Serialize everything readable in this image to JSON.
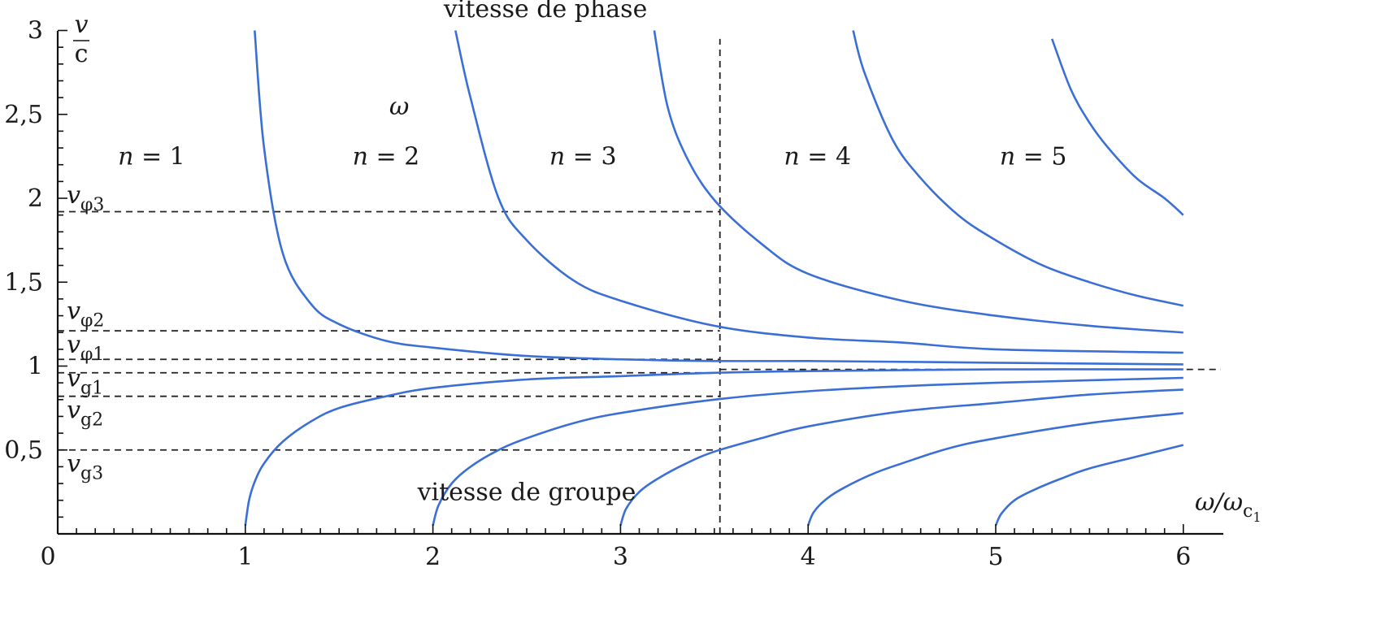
{
  "chart_data": {
    "type": "line",
    "title": "",
    "xlabel": {
      "main": "ω/ω",
      "sub": "c",
      "subsub": "1"
    },
    "ylabel": {
      "num": "v",
      "den": "c"
    },
    "xlim": [
      0,
      6
    ],
    "ylim": [
      0,
      3
    ],
    "x_ticks": [
      {
        "value": 0,
        "label": "0"
      },
      {
        "value": 1,
        "label": "1"
      },
      {
        "value": 2,
        "label": "2"
      },
      {
        "value": 3,
        "label": "3"
      },
      {
        "value": 4,
        "label": "4"
      },
      {
        "value": 5,
        "label": "5"
      },
      {
        "value": 6,
        "label": "6"
      }
    ],
    "y_ticks": [
      {
        "value": 0.5,
        "label": "0,5"
      },
      {
        "value": 1,
        "label": "1"
      },
      {
        "value": 1.5,
        "label": "1,5"
      },
      {
        "value": 2,
        "label": "2"
      },
      {
        "value": 2.5,
        "label": "2,5"
      },
      {
        "value": 3,
        "label": "3"
      }
    ],
    "line_color": "#3b6fd6",
    "grid": false,
    "series": [
      {
        "kind": "phase",
        "mode": 1,
        "x": [
          1.05,
          1.1,
          1.2,
          1.35,
          1.5,
          1.75,
          2,
          2.5,
          3,
          3.5,
          4,
          5,
          6
        ],
        "y": [
          3.0,
          2.3,
          1.67,
          1.37,
          1.25,
          1.15,
          1.11,
          1.06,
          1.04,
          1.03,
          1.03,
          1.02,
          1.01
        ]
      },
      {
        "kind": "phase",
        "mode": 2,
        "x": [
          2.12,
          2.2,
          2.35,
          2.5,
          2.75,
          3,
          3.5,
          4,
          4.5,
          5,
          6
        ],
        "y": [
          3.0,
          2.6,
          2.0,
          1.75,
          1.51,
          1.39,
          1.24,
          1.17,
          1.14,
          1.1,
          1.08
        ]
      },
      {
        "kind": "phase",
        "mode": 3,
        "x": [
          3.18,
          3.25,
          3.35,
          3.5,
          3.75,
          4,
          4.5,
          5,
          5.5,
          6
        ],
        "y": [
          3.0,
          2.55,
          2.25,
          1.99,
          1.73,
          1.55,
          1.39,
          1.3,
          1.24,
          1.2
        ]
      },
      {
        "kind": "phase",
        "mode": 4,
        "x": [
          4.24,
          4.3,
          4.45,
          4.6,
          4.8,
          5,
          5.25,
          5.5,
          5.75,
          6
        ],
        "y": [
          3.0,
          2.75,
          2.35,
          2.12,
          1.9,
          1.75,
          1.6,
          1.5,
          1.42,
          1.36
        ]
      },
      {
        "kind": "phase",
        "mode": 5,
        "x": [
          5.3,
          5.4,
          5.5,
          5.6,
          5.75,
          5.9,
          6
        ],
        "y": [
          2.95,
          2.65,
          2.45,
          2.3,
          2.12,
          2.0,
          1.9
        ]
      },
      {
        "kind": "group",
        "mode": 1,
        "x": [
          1.0,
          1.02,
          1.05,
          1.1,
          1.2,
          1.35,
          1.5,
          1.75,
          2,
          2.5,
          3,
          3.5,
          4,
          5,
          6
        ],
        "y": [
          0.05,
          0.2,
          0.31,
          0.42,
          0.55,
          0.67,
          0.75,
          0.82,
          0.87,
          0.92,
          0.94,
          0.96,
          0.97,
          0.98,
          0.98
        ]
      },
      {
        "kind": "group",
        "mode": 2,
        "x": [
          2.0,
          2.03,
          2.1,
          2.2,
          2.35,
          2.5,
          2.75,
          3,
          3.5,
          4,
          4.5,
          5,
          6
        ],
        "y": [
          0.05,
          0.17,
          0.3,
          0.4,
          0.5,
          0.57,
          0.66,
          0.72,
          0.8,
          0.85,
          0.88,
          0.9,
          0.93
        ]
      },
      {
        "kind": "group",
        "mode": 3,
        "x": [
          3.0,
          3.03,
          3.1,
          3.2,
          3.35,
          3.5,
          3.75,
          4,
          4.5,
          5,
          5.5,
          6
        ],
        "y": [
          0.05,
          0.15,
          0.25,
          0.33,
          0.42,
          0.49,
          0.57,
          0.64,
          0.73,
          0.78,
          0.83,
          0.86
        ]
      },
      {
        "kind": "group",
        "mode": 4,
        "x": [
          4.0,
          4.03,
          4.1,
          4.2,
          4.35,
          4.5,
          4.75,
          5,
          5.5,
          6
        ],
        "y": [
          0.05,
          0.13,
          0.21,
          0.28,
          0.36,
          0.42,
          0.51,
          0.57,
          0.66,
          0.72
        ]
      },
      {
        "kind": "group",
        "mode": 5,
        "x": [
          5.0,
          5.03,
          5.1,
          5.2,
          5.35,
          5.5,
          5.75,
          6
        ],
        "y": [
          0.05,
          0.12,
          0.2,
          0.26,
          0.33,
          0.39,
          0.46,
          0.53
        ]
      }
    ],
    "reference_lines": [
      {
        "orientation": "horizontal",
        "y": 1.92,
        "x_start": 0,
        "x_end": 3.53
      },
      {
        "orientation": "horizontal",
        "y": 1.21,
        "x_start": 0,
        "x_end": 3.53
      },
      {
        "orientation": "horizontal",
        "y": 1.04,
        "x_start": 0,
        "x_end": 3.53
      },
      {
        "orientation": "horizontal",
        "y": 0.96,
        "x_start": 0,
        "x_end": 3.53
      },
      {
        "orientation": "horizontal",
        "y": 0.82,
        "x_start": 0,
        "x_end": 3.53
      },
      {
        "orientation": "horizontal",
        "y": 0.5,
        "x_start": 0,
        "x_end": 3.53
      },
      {
        "orientation": "horizontal",
        "y": 0.98,
        "x_start": 3.53,
        "x_end": 6.2
      },
      {
        "orientation": "vertical",
        "x": 3.53,
        "y_start": 0,
        "y_end": 2.95
      }
    ],
    "level_labels": [
      {
        "base": "v",
        "sub": "φ3",
        "x": 0.1,
        "y": 1.97
      },
      {
        "base": "v",
        "sub": "φ2",
        "x": 0.1,
        "y": 1.28
      },
      {
        "base": "v",
        "sub": "φ1",
        "x": 0.1,
        "y": 1.08
      },
      {
        "base": "v",
        "sub": "g1",
        "x": 0.1,
        "y": 0.88
      },
      {
        "base": "v",
        "sub": "g2",
        "x": 0.1,
        "y": 0.69
      },
      {
        "base": "v",
        "sub": "g3",
        "x": 0.1,
        "y": 0.37
      }
    ],
    "mode_labels": [
      {
        "prefix": "n",
        "text": " = 1",
        "x": 0.5,
        "y": 2.2
      },
      {
        "prefix": "n",
        "text": " = 2",
        "x": 1.75,
        "y": 2.2
      },
      {
        "prefix": "n",
        "text": " = 3",
        "x": 2.8,
        "y": 2.2
      },
      {
        "prefix": "n",
        "text": " = 4",
        "x": 4.05,
        "y": 2.2
      },
      {
        "prefix": "n",
        "text": " = 5",
        "x": 5.2,
        "y": 2.2
      }
    ],
    "annotations": [
      {
        "text": "vitesse de phase",
        "x": 2.6,
        "y": 3.08,
        "italic": false
      },
      {
        "text": "ω",
        "x": 1.82,
        "y": 2.5,
        "italic": true
      },
      {
        "text": "vitesse de groupe",
        "x": 2.5,
        "y": 0.2,
        "italic": false
      }
    ]
  }
}
